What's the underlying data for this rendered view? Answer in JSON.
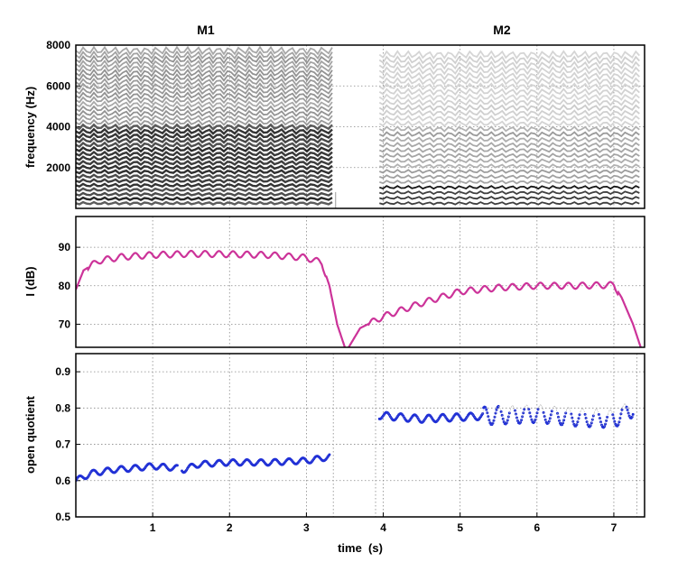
{
  "chart_data": [
    {
      "type": "heatmap",
      "panel": "spectrogram",
      "column_titles": [
        "M1",
        "M2"
      ],
      "ylabel": "frequency (Hz)",
      "ylim": [
        0,
        8000
      ],
      "xlim": [
        0,
        7.4
      ],
      "yticks": [
        2000,
        4000,
        6000,
        8000
      ],
      "grid": true,
      "colormap": "grayscale (dark = high energy)",
      "segments": [
        {
          "name": "M1",
          "x_start": 0.0,
          "x_end": 3.35
        },
        {
          "name": "M2",
          "x_start": 3.95,
          "x_end": 7.35
        }
      ]
    },
    {
      "type": "line",
      "panel": "intensity",
      "ylabel": "I (dB)",
      "ylim": [
        64,
        98
      ],
      "xlim": [
        0,
        7.4
      ],
      "yticks": [
        70,
        80,
        90
      ],
      "grid": true,
      "color": "#cc3399",
      "series": [
        {
          "x": [
            0.0,
            0.1,
            0.3,
            0.6,
            1.0,
            1.5,
            2.0,
            2.5,
            3.0,
            3.2,
            3.3,
            3.4,
            3.5
          ],
          "values": [
            79,
            84,
            86.5,
            87.5,
            88,
            88.3,
            88.2,
            88,
            87.3,
            86,
            80,
            70,
            64
          ]
        },
        {
          "x": [
            3.55,
            3.7,
            4.0,
            4.5,
            5.0,
            5.5,
            6.0,
            6.5,
            7.0,
            7.1,
            7.25,
            7.35
          ],
          "values": [
            64,
            69,
            72,
            75.5,
            78.5,
            79.5,
            80,
            80,
            80.2,
            77,
            70,
            64
          ]
        }
      ]
    },
    {
      "type": "scatter",
      "panel": "open-quotient",
      "ylabel": "open quotient",
      "xlabel": "time  (s)",
      "ylim": [
        0.5,
        0.95
      ],
      "xlim": [
        0,
        7.4
      ],
      "yticks": [
        0.5,
        0.6,
        0.7,
        0.8,
        0.9
      ],
      "xticks": [
        1,
        2,
        3,
        4,
        5,
        6,
        7
      ],
      "grid": true,
      "color": "#1f2fd6",
      "segments": [
        {
          "x": [
            0.0,
            0.2,
            0.5,
            0.8,
            1.0,
            1.3,
            1.4,
            1.6,
            2.0,
            2.5,
            3.0,
            3.3
          ],
          "values": [
            0.6,
            0.62,
            0.63,
            0.635,
            0.64,
            0.635,
            0.63,
            0.645,
            0.65,
            0.65,
            0.655,
            0.665
          ]
        },
        {
          "x": [
            3.95,
            4.2,
            4.5,
            5.0,
            5.5,
            6.0,
            6.5,
            7.0,
            7.25
          ],
          "values": [
            0.78,
            0.775,
            0.77,
            0.775,
            0.78,
            0.785,
            0.775,
            0.77,
            0.8
          ]
        }
      ]
    }
  ]
}
